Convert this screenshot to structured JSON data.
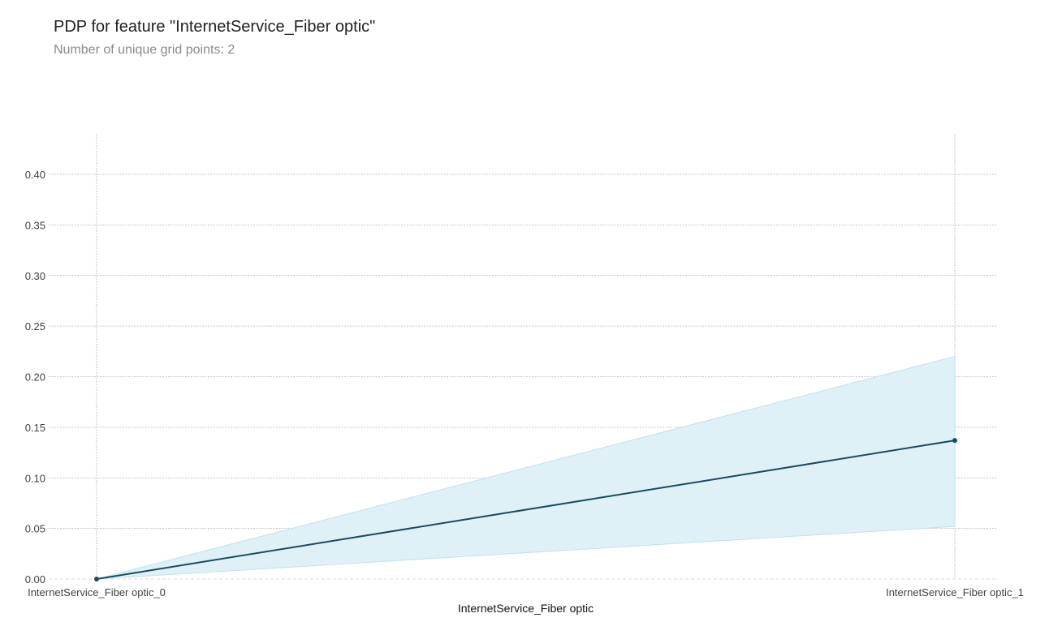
{
  "chart_data": {
    "type": "line",
    "title": "PDP for feature \"InternetService_Fiber optic\"",
    "subtitle": "Number of unique grid points: 2",
    "xlabel": "InternetService_Fiber optic",
    "ylabel": "",
    "categories": [
      "InternetService_Fiber optic_0",
      "InternetService_Fiber optic_1"
    ],
    "series": [
      {
        "values": [
          0.0,
          0.137
        ],
        "lower": [
          0.0,
          0.052
        ],
        "upper": [
          0.0,
          0.22
        ]
      }
    ],
    "ylim": [
      0.0,
      0.44
    ],
    "yticks": [
      "0.00",
      "0.05",
      "0.10",
      "0.15",
      "0.20",
      "0.25",
      "0.30",
      "0.35",
      "0.40"
    ],
    "grid": true,
    "colors": {
      "line": "#1a4b5f",
      "band": "#dff0f7",
      "band_edge": "#bfe2ef",
      "grid": "#b5b5b5"
    }
  }
}
